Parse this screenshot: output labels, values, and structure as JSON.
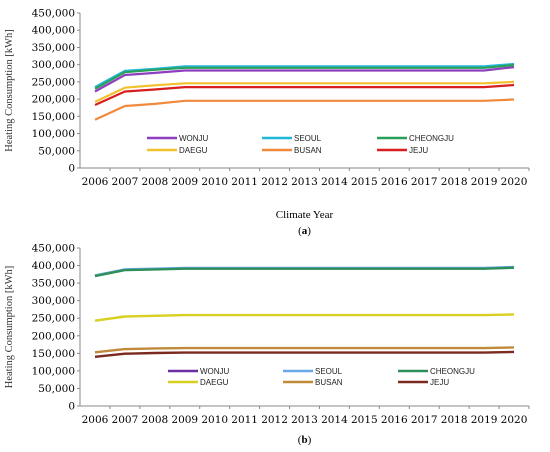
{
  "chart_data": [
    {
      "type": "line",
      "panel_label": "a",
      "ylabel": "Heating Consumption [kWh]",
      "xlabel": "Climate Year",
      "ylim": [
        0,
        450000
      ],
      "ytick_labels": [
        "0",
        "50,000",
        "100,000",
        "150,000",
        "200,000",
        "250,000",
        "300,000",
        "350,000",
        "400,000",
        "450,000"
      ],
      "x": [
        2006,
        2007,
        2008,
        2009,
        2010,
        2011,
        2012,
        2013,
        2014,
        2015,
        2016,
        2017,
        2018,
        2019,
        2020
      ],
      "legend_position": "inside-lower",
      "grid": false,
      "series": [
        {
          "name": "WONJU",
          "color": "#8e3fbf",
          "values": [
            222000,
            270000,
            276000,
            283000,
            283000,
            283000,
            283000,
            283000,
            283000,
            283000,
            283000,
            283000,
            283000,
            283000,
            293000
          ]
        },
        {
          "name": "SEOUL",
          "color": "#1fb8d8",
          "values": [
            235000,
            282000,
            288000,
            295000,
            295000,
            295000,
            295000,
            295000,
            295000,
            295000,
            295000,
            295000,
            295000,
            295000,
            302000
          ]
        },
        {
          "name": "CHEONGJU",
          "color": "#2ba05a",
          "values": [
            230000,
            278000,
            285000,
            291000,
            291000,
            291000,
            291000,
            291000,
            291000,
            291000,
            291000,
            291000,
            291000,
            291000,
            299000
          ]
        },
        {
          "name": "DAEGU",
          "color": "#f2c12e",
          "values": [
            192000,
            233000,
            240000,
            246000,
            246000,
            246000,
            246000,
            246000,
            246000,
            246000,
            246000,
            246000,
            246000,
            246000,
            250000
          ]
        },
        {
          "name": "BUSAN",
          "color": "#f08a3c",
          "values": [
            140000,
            180000,
            186000,
            195000,
            195000,
            195000,
            195000,
            195000,
            195000,
            195000,
            195000,
            195000,
            195000,
            195000,
            199000
          ]
        },
        {
          "name": "JEJU",
          "color": "#d81e1e",
          "values": [
            183000,
            222000,
            228000,
            235000,
            235000,
            235000,
            235000,
            235000,
            235000,
            235000,
            235000,
            235000,
            235000,
            235000,
            241000
          ]
        }
      ]
    },
    {
      "type": "line",
      "panel_label": "b",
      "ylabel": "Heating Consumption [kWh]",
      "xlabel": "",
      "ylim": [
        0,
        450000
      ],
      "ytick_labels": [
        "0",
        "50,000",
        "100,000",
        "150,000",
        "200,000",
        "250,000",
        "300,000",
        "350,000",
        "400,000",
        "450,000"
      ],
      "x": [
        2006,
        2007,
        2008,
        2009,
        2010,
        2011,
        2012,
        2013,
        2014,
        2015,
        2016,
        2017,
        2018,
        2019,
        2020
      ],
      "legend_position": "inside-lower",
      "grid": false,
      "series": [
        {
          "name": "WONJU",
          "color": "#6b2fa3",
          "values": [
            371000,
            388000,
            390000,
            392000,
            392000,
            392000,
            392000,
            392000,
            392000,
            392000,
            392000,
            392000,
            392000,
            392000,
            395000
          ]
        },
        {
          "name": "SEOUL",
          "color": "#6aa8e8",
          "values": [
            372000,
            389000,
            391000,
            393000,
            393000,
            393000,
            393000,
            393000,
            393000,
            393000,
            393000,
            393000,
            393000,
            393000,
            396000
          ]
        },
        {
          "name": "CHEONGJU",
          "color": "#2f8f5a",
          "values": [
            370000,
            387000,
            389000,
            391000,
            391000,
            391000,
            391000,
            391000,
            391000,
            391000,
            391000,
            391000,
            391000,
            391000,
            394000
          ]
        },
        {
          "name": "DAEGU",
          "color": "#d8d020",
          "values": [
            243000,
            255000,
            257000,
            259000,
            259000,
            259000,
            259000,
            259000,
            259000,
            259000,
            259000,
            259000,
            259000,
            259000,
            261000
          ]
        },
        {
          "name": "BUSAN",
          "color": "#c08a3a",
          "values": [
            153000,
            162000,
            164000,
            165000,
            165000,
            165000,
            165000,
            165000,
            165000,
            165000,
            165000,
            165000,
            165000,
            165000,
            167000
          ]
        },
        {
          "name": "JEJU",
          "color": "#7a2a1e",
          "values": [
            140000,
            149000,
            151000,
            152000,
            152000,
            152000,
            152000,
            152000,
            152000,
            152000,
            152000,
            152000,
            152000,
            152000,
            154000
          ]
        }
      ]
    }
  ]
}
